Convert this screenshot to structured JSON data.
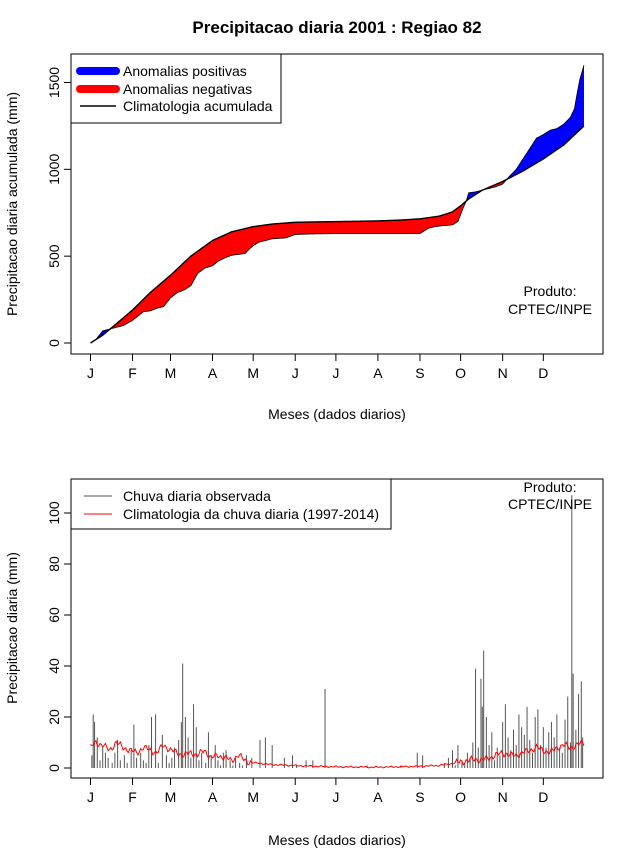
{
  "title": "Precipitacao diaria 2001 : Regiao 82",
  "colors": {
    "positive": "#0000ff",
    "negative": "#ff0000",
    "line": "#000000",
    "observed": "#555555",
    "clim_daily": "#ff0000",
    "frame": "#000000"
  },
  "chart_data": [
    {
      "type": "area",
      "ylabel": "Precipitacao diaria acumulada (mm)",
      "xlabel": "Meses (dados diarios)",
      "xlim": [
        1,
        365
      ],
      "ylim": [
        0,
        1600
      ],
      "yticks": [
        0,
        500,
        1000,
        1500
      ],
      "month_ticks": [
        {
          "label": "J",
          "day": 1
        },
        {
          "label": "F",
          "day": 32
        },
        {
          "label": "M",
          "day": 60
        },
        {
          "label": "A",
          "day": 91
        },
        {
          "label": "M",
          "day": 121
        },
        {
          "label": "J",
          "day": 152
        },
        {
          "label": "J",
          "day": 182
        },
        {
          "label": "A",
          "day": 213
        },
        {
          "label": "S",
          "day": 244
        },
        {
          "label": "O",
          "day": 274
        },
        {
          "label": "N",
          "day": 305
        },
        {
          "label": "D",
          "day": 335
        }
      ],
      "legend": {
        "position": "top-left",
        "items": [
          {
            "label": "Anomalias positivas",
            "color": "#0000ff",
            "kind": "thick"
          },
          {
            "label": "Anomalias negativas",
            "color": "#ff0000",
            "kind": "thick"
          },
          {
            "label": "Climatologia acumulada",
            "color": "#000000",
            "kind": "line"
          }
        ]
      },
      "annotation": {
        "lines": [
          "Produto:",
          "CPTEC/INPE"
        ],
        "position": "right"
      },
      "series": [
        {
          "name": "Climatologia acumulada",
          "x": [
            1,
            10,
            20,
            32,
            45,
            60,
            75,
            91,
            105,
            121,
            135,
            152,
            165,
            182,
            200,
            213,
            230,
            244,
            258,
            268,
            274,
            280,
            290,
            305,
            320,
            335,
            350,
            365
          ],
          "values": [
            0,
            45,
            110,
            190,
            290,
            390,
            500,
            590,
            640,
            670,
            685,
            695,
            697,
            699,
            701,
            703,
            708,
            715,
            730,
            755,
            790,
            830,
            880,
            930,
            990,
            1060,
            1140,
            1250
          ]
        },
        {
          "name": "Observada acumulada",
          "x": [
            1,
            5,
            10,
            15,
            20,
            25,
            32,
            40,
            45,
            50,
            55,
            60,
            65,
            70,
            75,
            80,
            85,
            91,
            95,
            100,
            105,
            110,
            115,
            118,
            121,
            125,
            130,
            135,
            145,
            152,
            165,
            182,
            200,
            213,
            230,
            244,
            250,
            255,
            260,
            268,
            272,
            274,
            276,
            278,
            280,
            285,
            290,
            295,
            300,
            305,
            310,
            315,
            320,
            325,
            330,
            335,
            340,
            345,
            350,
            355,
            358,
            360,
            362,
            365
          ],
          "values": [
            0,
            20,
            70,
            80,
            90,
            100,
            130,
            180,
            185,
            200,
            210,
            260,
            290,
            305,
            330,
            400,
            430,
            445,
            470,
            490,
            505,
            510,
            515,
            540,
            560,
            580,
            590,
            600,
            605,
            625,
            628,
            630,
            630,
            630,
            630,
            630,
            660,
            670,
            675,
            680,
            700,
            740,
            780,
            815,
            865,
            870,
            880,
            890,
            900,
            915,
            960,
            1000,
            1060,
            1120,
            1180,
            1200,
            1225,
            1235,
            1260,
            1300,
            1350,
            1440,
            1520,
            1600
          ]
        }
      ]
    },
    {
      "type": "bar",
      "ylabel": "Precipitacao diaria (mm)",
      "xlabel": "Meses (dados diarios)",
      "xlim": [
        1,
        365
      ],
      "ylim": [
        0,
        110
      ],
      "yticks": [
        0,
        20,
        40,
        60,
        80,
        100
      ],
      "month_ticks": [
        {
          "label": "J",
          "day": 1
        },
        {
          "label": "F",
          "day": 32
        },
        {
          "label": "M",
          "day": 60
        },
        {
          "label": "A",
          "day": 91
        },
        {
          "label": "M",
          "day": 121
        },
        {
          "label": "J",
          "day": 152
        },
        {
          "label": "J",
          "day": 182
        },
        {
          "label": "A",
          "day": 213
        },
        {
          "label": "S",
          "day": 244
        },
        {
          "label": "O",
          "day": 274
        },
        {
          "label": "N",
          "day": 305
        },
        {
          "label": "D",
          "day": 335
        }
      ],
      "legend": {
        "position": "top-left",
        "items": [
          {
            "label": "Chuva diaria observada",
            "color": "#555555",
            "kind": "line"
          },
          {
            "label": "Climatologia da chuva diaria (1997-2014)",
            "color": "#ff0000",
            "kind": "line"
          }
        ]
      },
      "annotation": {
        "lines": [
          "Produto:",
          "CPTEC/INPE"
        ],
        "position": "top-right"
      },
      "series": [
        {
          "name": "Chuva diaria observada",
          "type": "bar",
          "x": [
            2,
            3,
            4,
            6,
            8,
            10,
            12,
            14,
            17,
            19,
            21,
            23,
            26,
            28,
            31,
            33,
            35,
            38,
            40,
            42,
            44,
            46,
            49,
            51,
            54,
            57,
            59,
            61,
            63,
            66,
            68,
            69,
            71,
            73,
            75,
            77,
            79,
            81,
            83,
            86,
            88,
            90,
            93,
            95,
            97,
            99,
            101,
            104,
            106,
            108,
            111,
            113,
            116,
            120,
            126,
            130,
            135,
            144,
            150,
            153,
            160,
            165,
            174,
            205,
            230,
            242,
            246,
            262,
            265,
            268,
            270,
            272,
            275,
            277,
            279,
            281,
            283,
            285,
            287,
            289,
            290,
            291,
            293,
            295,
            297,
            299,
            301,
            303,
            305,
            307,
            309,
            311,
            313,
            315,
            317,
            319,
            321,
            323,
            325,
            327,
            329,
            331,
            333,
            335,
            337,
            339,
            341,
            343,
            345,
            347,
            349,
            351,
            353,
            355,
            356,
            357,
            359,
            361,
            363,
            364
          ],
          "values": [
            5,
            21,
            18,
            12,
            3,
            8,
            6,
            4,
            2,
            6,
            11,
            3,
            5,
            2,
            7,
            17,
            4,
            6,
            3,
            2,
            9,
            20,
            21,
            2,
            13,
            5,
            2,
            4,
            8,
            11,
            18,
            41,
            20,
            12,
            4,
            25,
            16,
            3,
            6,
            2,
            14,
            5,
            9,
            3,
            1,
            6,
            7,
            3,
            1,
            4,
            2,
            1,
            5,
            4,
            11,
            12,
            9,
            4,
            5,
            1,
            3,
            3,
            31,
            1,
            1,
            6,
            5,
            2,
            4,
            7,
            1,
            9,
            3,
            2,
            6,
            4,
            10,
            39,
            8,
            35,
            24,
            46,
            20,
            9,
            14,
            3,
            8,
            5,
            18,
            25,
            12,
            7,
            15,
            9,
            21,
            16,
            13,
            24,
            11,
            6,
            20,
            23,
            9,
            16,
            8,
            14,
            18,
            12,
            21,
            8,
            6,
            19,
            28,
            10,
            107,
            37,
            15,
            29,
            34,
            12
          ]
        },
        {
          "name": "Climatologia da chuva diaria (1997-2014)",
          "type": "line",
          "x": [
            1,
            5,
            10,
            15,
            20,
            25,
            30,
            35,
            40,
            45,
            50,
            55,
            60,
            65,
            70,
            75,
            80,
            85,
            90,
            95,
            100,
            105,
            110,
            115,
            120,
            125,
            130,
            140,
            150,
            160,
            170,
            180,
            190,
            200,
            210,
            220,
            230,
            240,
            250,
            258,
            265,
            270,
            275,
            280,
            285,
            290,
            295,
            300,
            305,
            310,
            315,
            320,
            325,
            330,
            335,
            340,
            345,
            350,
            355,
            360,
            365
          ],
          "values": [
            8,
            10,
            9,
            7,
            10,
            8,
            7,
            6,
            8,
            7,
            6,
            9,
            7,
            6,
            5,
            6,
            5,
            7,
            4,
            5,
            4,
            3,
            5,
            3,
            2,
            2,
            1.5,
            1.2,
            1,
            0.8,
            0.6,
            0.5,
            0.4,
            0.4,
            0.3,
            0.4,
            0.5,
            0.6,
            0.8,
            1,
            1.5,
            2,
            2.5,
            3,
            3.5,
            3,
            4,
            5,
            6,
            5,
            5,
            6,
            7,
            8,
            7,
            6,
            8,
            9,
            8,
            9,
            10
          ]
        }
      ]
    }
  ]
}
